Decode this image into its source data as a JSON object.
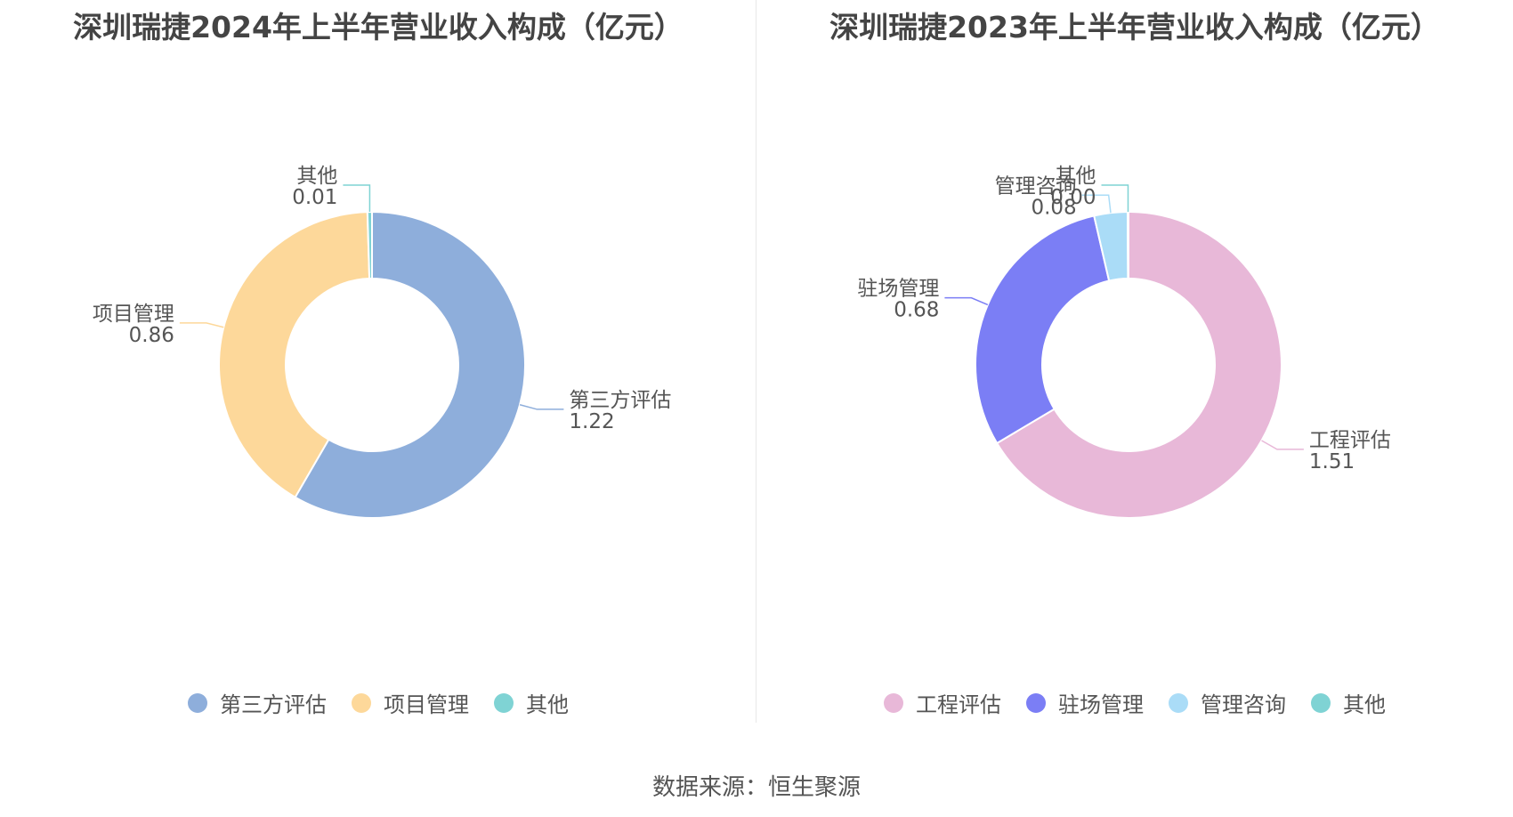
{
  "source_text": "数据来源：恒生聚源",
  "chart_data": [
    {
      "type": "pie",
      "title": "深圳瑞捷2024年上半年营业收入构成（亿元）",
      "series": [
        {
          "name": "第三方评估",
          "value": 1.22,
          "label": "1.22",
          "color": "#8eaedb"
        },
        {
          "name": "项目管理",
          "value": 0.86,
          "label": "0.86",
          "color": "#fdd89a"
        },
        {
          "name": "其他",
          "value": 0.01,
          "label": "0.01",
          "color": "#7fd3d4"
        }
      ],
      "legend_position": "bottom"
    },
    {
      "type": "pie",
      "title": "深圳瑞捷2023年上半年营业收入构成（亿元）",
      "series": [
        {
          "name": "工程评估",
          "value": 1.51,
          "label": "1.51",
          "color": "#e8b8d8"
        },
        {
          "name": "驻场管理",
          "value": 0.68,
          "label": "0.68",
          "color": "#7b7ef5"
        },
        {
          "name": "管理咨询",
          "value": 0.08,
          "label": "0.08",
          "color": "#aadcf7"
        },
        {
          "name": "其他",
          "value": 0.0,
          "label": "0.00",
          "color": "#7fd3d4"
        }
      ],
      "legend_position": "bottom"
    }
  ]
}
